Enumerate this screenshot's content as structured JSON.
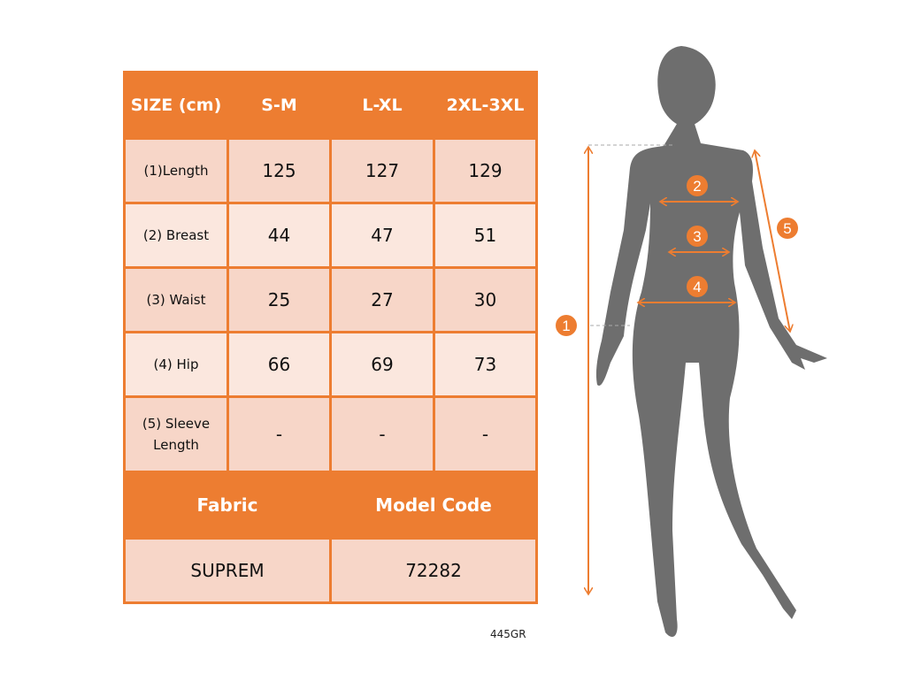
{
  "size_table": {
    "header": [
      "SIZE (cm)",
      "S-M",
      "L-XL",
      "2XL-3XL"
    ],
    "rows": [
      {
        "label": "(1)Length",
        "values": [
          "125",
          "127",
          "129"
        ]
      },
      {
        "label": "(2) Breast",
        "values": [
          "44",
          "47",
          "51"
        ]
      },
      {
        "label": "(3) Waist",
        "values": [
          "25",
          "27",
          "30"
        ]
      },
      {
        "label": "(4) Hip",
        "values": [
          "66",
          "69",
          "73"
        ]
      },
      {
        "label": "(5) Sleeve Length",
        "values": [
          "-",
          "-",
          "-"
        ]
      }
    ]
  },
  "info": {
    "fabric_label": "Fabric",
    "model_code_label": "Model Code",
    "fabric_value": "SUPREM",
    "model_code_value": "72282"
  },
  "image_code": "445GR",
  "figure": {
    "markers": [
      "1",
      "2",
      "3",
      "4",
      "5"
    ],
    "accent_color": "#ED7D31",
    "silhouette_color": "#6E6E6E"
  }
}
